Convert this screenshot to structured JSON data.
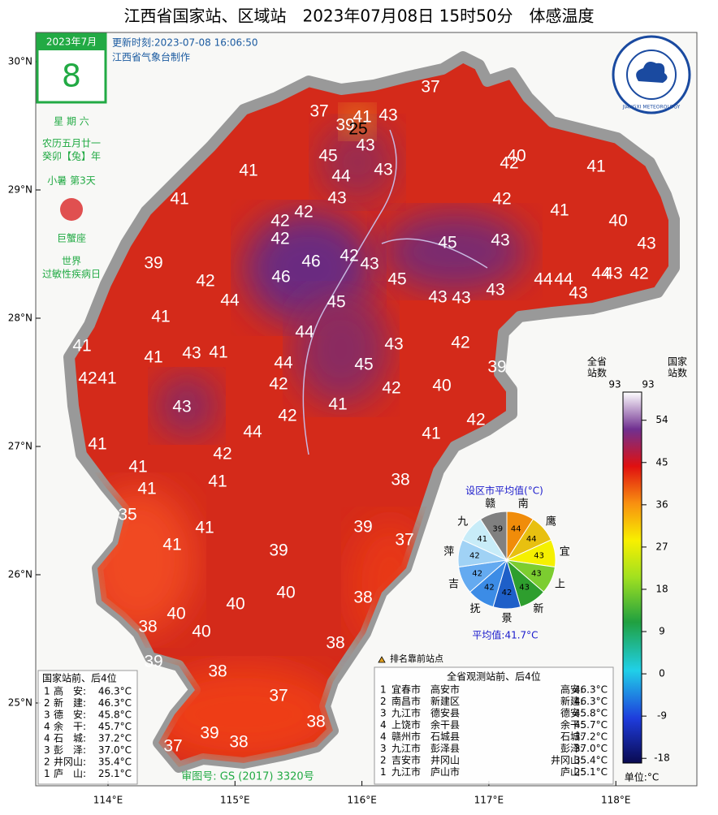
{
  "title": "江西省国家站、区域站　2023年07月08日 15时50分　体感温度",
  "update_time": "更新时刻:2023-07-08 16:06:50",
  "producer": "江西省气象台制作",
  "logo": "JIANGXI METEOROLOGY",
  "calendar": {
    "month": "2023年7月",
    "day": "8",
    "weekday": "星 期 六",
    "lunar": "农历五月廿一",
    "year": "癸卯【兔】年",
    "term": "小暑 第3天",
    "zodiac": "巨蟹座",
    "event": [
      "世界",
      "过敏性疾病日"
    ]
  },
  "lat_labels": [
    "30°N",
    "29°N",
    "28°N",
    "27°N",
    "26°N",
    "25°N"
  ],
  "lon_labels": [
    "114°E",
    "115°E",
    "116°E",
    "117°E",
    "118°E"
  ],
  "stations": [
    37,
    41,
    43,
    37,
    39,
    25,
    43,
    45,
    44,
    43,
    40,
    42,
    41,
    41,
    41,
    43,
    42,
    42,
    41,
    40,
    42,
    42,
    46,
    45,
    43,
    43,
    42,
    43,
    39,
    46,
    45,
    42,
    44,
    44,
    44,
    43,
    42,
    43,
    43,
    43,
    43,
    44,
    45,
    41,
    44,
    43,
    42,
    41,
    43,
    41,
    41,
    44,
    45,
    39,
    42,
    41,
    42,
    42,
    40,
    43,
    41,
    42,
    42,
    44,
    41,
    41,
    42,
    41,
    41,
    41,
    38,
    35,
    39,
    41,
    37,
    41,
    39,
    38,
    40,
    40,
    40,
    40,
    38,
    38,
    39,
    38,
    37,
    38,
    39,
    38,
    37
  ],
  "pie": {
    "title": "设区市平均值(°C)",
    "average": "平均值:41.7°C",
    "slices": [
      {
        "name": "南",
        "value": 44,
        "color": "#f08c0a"
      },
      {
        "name": "鹰",
        "value": 44,
        "color": "#e8c010"
      },
      {
        "name": "宜",
        "value": 43,
        "color": "#f5f000"
      },
      {
        "name": "上",
        "value": 43,
        "color": "#7ccd30"
      },
      {
        "name": "新",
        "value": 43,
        "color": "#2e9e2e"
      },
      {
        "name": "景",
        "value": 42,
        "color": "#1e5fc8"
      },
      {
        "name": "抚",
        "value": 42,
        "color": "#3c8ce6"
      },
      {
        "name": "吉",
        "value": 42,
        "color": "#64aaf0"
      },
      {
        "name": "萍",
        "value": 42,
        "color": "#a0d2f5"
      },
      {
        "name": "九",
        "value": 41,
        "color": "#c8ecf8"
      },
      {
        "name": "赣",
        "value": 39,
        "color": "#808080"
      }
    ]
  },
  "colorbar": {
    "province_label": "全省\n站数",
    "national_label": "国家\n站数",
    "province_count": "93",
    "national_count": "93",
    "ylim": [
      -19,
      60
    ],
    "ticks": [
      -18,
      -9,
      0,
      9,
      18,
      27,
      36,
      45,
      54
    ],
    "unit": "单位:°C"
  },
  "legend_top": "排名靠前站点",
  "national_table": {
    "title": "国家站前、后4位",
    "rows": [
      [
        "1",
        "高　安:",
        "46.3°C"
      ],
      [
        "2",
        "新　建:",
        "46.3°C"
      ],
      [
        "3",
        "德　安:",
        "45.8°C"
      ],
      [
        "4",
        "余　干:",
        "45.7°C"
      ],
      [
        "4",
        "石　城:",
        "37.2°C"
      ],
      [
        "3",
        "彭　泽:",
        "37.0°C"
      ],
      [
        "2",
        "井冈山:",
        "35.4°C"
      ],
      [
        "1",
        "庐　山:",
        "25.1°C"
      ]
    ]
  },
  "all_table": {
    "title": "全省观测站前、后4位",
    "rows": [
      [
        "1",
        "宜春市",
        "高安市",
        "高安:",
        "46.3°C"
      ],
      [
        "2",
        "南昌市",
        "新建区",
        "新建:",
        "46.3°C"
      ],
      [
        "3",
        "九江市",
        "德安县",
        "德安:",
        "45.8°C"
      ],
      [
        "4",
        "上饶市",
        "余干县",
        "余干:",
        "45.7°C"
      ],
      [
        "4",
        "赣州市",
        "石城县",
        "石城:",
        "37.2°C"
      ],
      [
        "3",
        "九江市",
        "彭泽县",
        "彭泽:",
        "37.0°C"
      ],
      [
        "2",
        "吉安市",
        "井冈山",
        "井冈山:",
        "35.4°C"
      ],
      [
        "1",
        "九江市",
        "庐山市",
        "庐山:",
        "25.1°C"
      ]
    ]
  },
  "approval": "审图号: GS (2017) 3320号"
}
